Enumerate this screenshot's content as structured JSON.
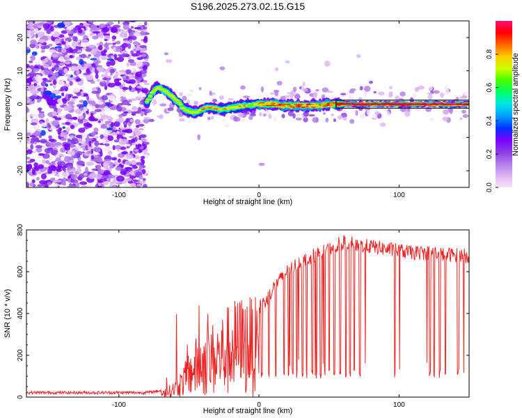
{
  "title": "S196.2025.273.02.15.G15",
  "colors": {
    "snr_line": "#ee2222",
    "ridge_outline": "#000000",
    "colormap": [
      "#f6e4fb",
      "#dcb4f2",
      "#b27be9",
      "#8a3be6",
      "#7a00ff",
      "#0033ff",
      "#00a0ff",
      "#00e6e6",
      "#00ff66",
      "#44ff00",
      "#ccff00",
      "#ffcc00",
      "#ff6600",
      "#ff0000",
      "#ff1177"
    ]
  },
  "chart_data": [
    {
      "type": "heatmap",
      "name": "spectrogram",
      "xlabel": "Height of straight line (km)",
      "ylabel": "Frequency (Hz)",
      "xlim": [
        -166,
        150
      ],
      "ylim": [
        -25,
        25
      ],
      "x_ticks": [
        -100,
        0,
        100
      ],
      "x_tick_labels": [
        "-100",
        "0",
        "100"
      ],
      "y_ticks": [
        -20,
        -10,
        0,
        10,
        20
      ],
      "y_tick_labels": [
        "-20",
        "-10",
        "0",
        "10",
        "20"
      ],
      "ridge": {
        "x": [
          -80,
          -78,
          -76,
          -74,
          -72,
          -70,
          -67,
          -64,
          -60,
          -57,
          -54,
          -50,
          -46,
          -42,
          -38,
          -34,
          -30,
          -25,
          -20,
          -10,
          0,
          10,
          20,
          30,
          40,
          50,
          60,
          80,
          100,
          120,
          150
        ],
        "y": [
          0.5,
          2,
          3.5,
          4.5,
          5,
          4.5,
          4,
          3,
          1.5,
          0.5,
          -1.5,
          -2,
          -2.5,
          -2,
          -1,
          -1,
          -1.5,
          -1.5,
          -1,
          -0.5,
          0,
          0,
          -0.5,
          -0.5,
          -0.5,
          0,
          0,
          0,
          0,
          0,
          0
        ]
      },
      "noise_x_range": [
        -166,
        -80
      ],
      "background_amplitude": 0.25,
      "ridge_amplitude": 0.9
    },
    {
      "type": "colorbar",
      "name": "amplitude-colorbar",
      "label": "Normalized spectral amplitude",
      "range": [
        0,
        1
      ],
      "ticks": [
        0,
        0.2,
        0.4,
        0.6,
        0.8
      ],
      "tick_labels": [
        "0.0",
        "0.2",
        "0.4",
        "0.6",
        "0.8"
      ]
    },
    {
      "type": "line",
      "name": "snr-plot",
      "xlabel": "Height of straight line (km)",
      "ylabel": "SNR (10 * v/v)",
      "xlim": [
        -166,
        150
      ],
      "ylim": [
        0,
        800
      ],
      "x_ticks": [
        -100,
        0,
        100
      ],
      "x_tick_labels": [
        "-100",
        "0",
        "100"
      ],
      "y_ticks": [
        0,
        200,
        400,
        600,
        800
      ],
      "y_tick_labels": [
        "0",
        "200",
        "400",
        "600",
        "800"
      ],
      "snr_envelope": {
        "x": [
          -166,
          -80,
          -70,
          -62,
          -55,
          -50,
          -45,
          -40,
          -35,
          -30,
          -25,
          -20,
          -15,
          -10,
          -5,
          0,
          5,
          10,
          15,
          20,
          30,
          40,
          50,
          60,
          70,
          80,
          90,
          100,
          110,
          120,
          130,
          140,
          150
        ],
        "y": [
          20,
          20,
          30,
          60,
          120,
          200,
          260,
          300,
          320,
          340,
          380,
          420,
          440,
          450,
          440,
          430,
          460,
          520,
          560,
          600,
          650,
          680,
          710,
          740,
          730,
          720,
          710,
          700,
          690,
          690,
          685,
          680,
          675
        ]
      },
      "dropouts_x": [
        -13,
        -7,
        2,
        7,
        12,
        18,
        21,
        24,
        27,
        31,
        34,
        38,
        41,
        44,
        47,
        50,
        54,
        58,
        62,
        65,
        68,
        72,
        97,
        122,
        125,
        129,
        133,
        142
      ]
    }
  ]
}
